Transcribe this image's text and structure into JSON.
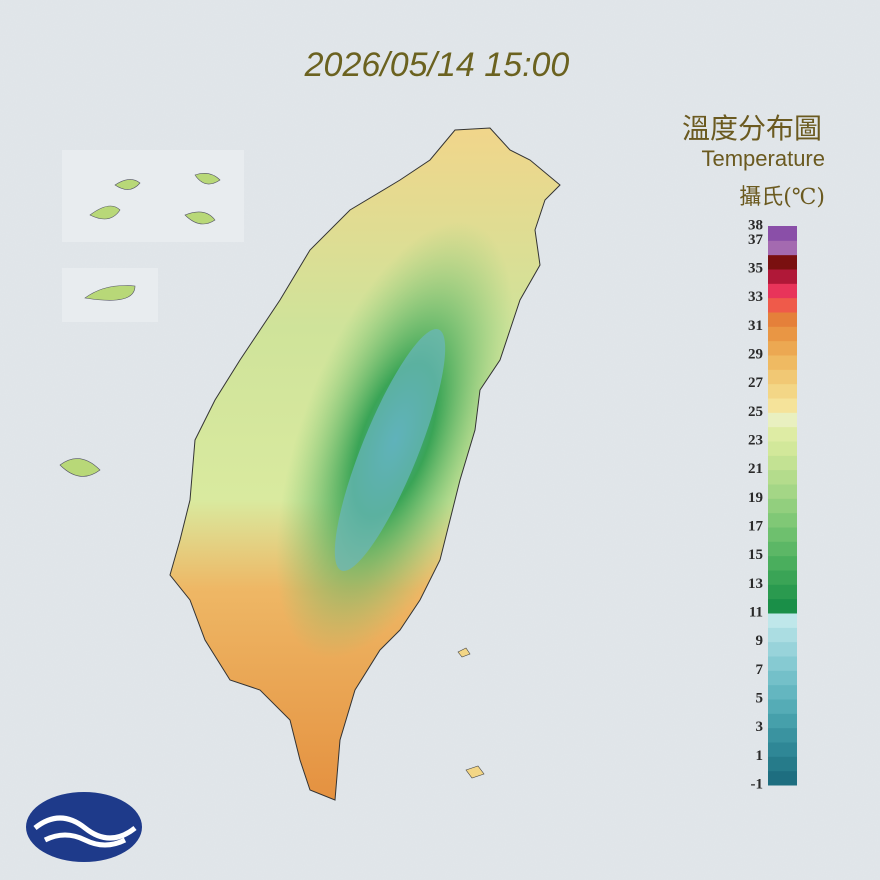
{
  "header": {
    "timestamp": "2026/05/14 15:00"
  },
  "legend": {
    "title": "溫度分布圖",
    "subtitle": "Temperature",
    "unit": "攝氏(℃)",
    "range": [
      -1,
      38
    ],
    "ticks": [
      38,
      37,
      35,
      33,
      31,
      29,
      27,
      25,
      23,
      21,
      19,
      17,
      15,
      13,
      11,
      9,
      7,
      5,
      3,
      1,
      -1
    ],
    "colors": [
      "#1e6e80",
      "#267b8a",
      "#2f8796",
      "#3a93a0",
      "#46a0ab",
      "#55acb6",
      "#64b6c0",
      "#74c0c9",
      "#86cad2",
      "#98d3da",
      "#abdde2",
      "#bfe7ea",
      "#1a8f48",
      "#2a9a4f",
      "#3aa456",
      "#4aae5d",
      "#5cb766",
      "#6ec06e",
      "#80c876",
      "#92cf7e",
      "#a4d686",
      "#b4dc8c",
      "#c3e293",
      "#d2e89a",
      "#deeca4",
      "#e9f0c0",
      "#f5e39a",
      "#f3d686",
      "#f1c874",
      "#efba62",
      "#eca852",
      "#e99644",
      "#e5803a",
      "#ef5a4a",
      "#e8345a",
      "#b01838",
      "#7a1010",
      "#a46ab0",
      "#8a4fa8"
    ]
  }
}
